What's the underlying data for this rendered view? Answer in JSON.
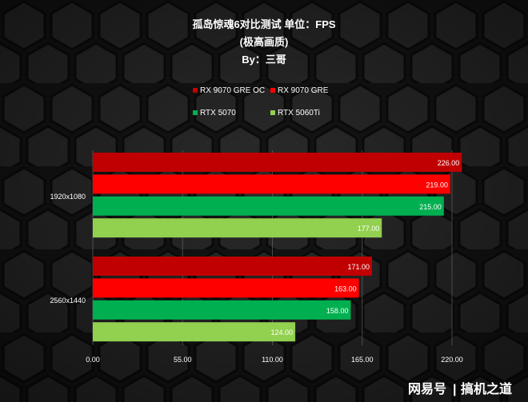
{
  "chart_data": {
    "type": "bar",
    "orientation": "horizontal",
    "title": "孤岛惊魂6对比测试 单位：FPS",
    "subtitle": "(极高画质)",
    "author": "By：三哥",
    "categories": [
      "1920x1080",
      "2560x1440"
    ],
    "series": [
      {
        "name": "RX 9070 GRE OC",
        "color": "#c00000",
        "values": [
          226,
          171
        ]
      },
      {
        "name": "RX 9070 GRE",
        "color": "#ff0000",
        "values": [
          219,
          163
        ]
      },
      {
        "name": "RTX 5070",
        "color": "#00b050",
        "values": [
          215,
          158
        ]
      },
      {
        "name": "RTX 5060Ti",
        "color": "#92d050",
        "values": [
          177,
          124
        ]
      }
    ],
    "xlim": [
      0,
      220
    ],
    "xticks": [
      "0.00",
      "55.00",
      "110.00",
      "165.00",
      "220.00"
    ],
    "legend_position": "top",
    "grid": true
  },
  "watermark": {
    "brand": "网易号",
    "separator": "|",
    "name": "搞机之道"
  }
}
